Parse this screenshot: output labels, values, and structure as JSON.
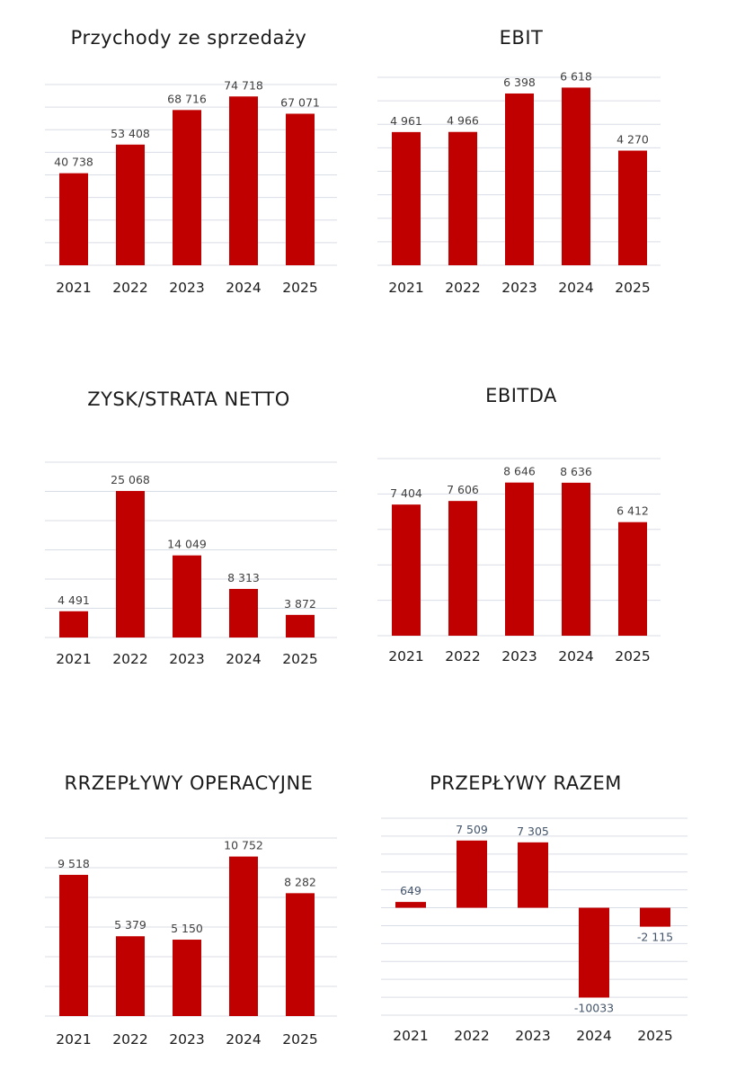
{
  "chart_data": [
    {
      "type": "bar",
      "title": "Przychody ze sprzedaży",
      "categories": [
        "2021",
        "2022",
        "2023",
        "2024",
        "2025"
      ],
      "values": [
        40738,
        53408,
        68716,
        74718,
        67071
      ],
      "value_labels": [
        "40 738",
        "53 408",
        "68 716",
        "74 718",
        "67 071"
      ],
      "ylim": [
        0,
        80000
      ],
      "grid": true,
      "bar_color": "#c00000"
    },
    {
      "type": "bar",
      "title": "EBIT",
      "categories": [
        "2021",
        "2022",
        "2023",
        "2024",
        "2025"
      ],
      "values": [
        4961,
        4966,
        6398,
        6618,
        4270
      ],
      "value_labels": [
        "4 961",
        "4 966",
        "6 398",
        "6 618",
        "4 270"
      ],
      "ylim": [
        0,
        7000
      ],
      "grid": true,
      "bar_color": "#c00000"
    },
    {
      "type": "bar",
      "title": "ZYSK/STRATA NETTO",
      "categories": [
        "2021",
        "2022",
        "2023",
        "2024",
        "2025"
      ],
      "values": [
        4491,
        25068,
        14049,
        8313,
        3872
      ],
      "value_labels": [
        "4 491",
        "25 068",
        "14 049",
        "8 313",
        "3 872"
      ],
      "ylim": [
        0,
        30000
      ],
      "grid": true,
      "bar_color": "#c00000"
    },
    {
      "type": "bar",
      "title": "EBITDA",
      "categories": [
        "2021",
        "2022",
        "2023",
        "2024",
        "2025"
      ],
      "values": [
        7404,
        7606,
        8646,
        8636,
        6412
      ],
      "value_labels": [
        "7 404",
        "7 606",
        "8 646",
        "8 636",
        "6 412"
      ],
      "ylim": [
        0,
        10000
      ],
      "grid": true,
      "bar_color": "#c00000"
    },
    {
      "type": "bar",
      "title": "RRZEPŁYWY OPERACYJNE",
      "categories": [
        "2021",
        "2022",
        "2023",
        "2024",
        "2025"
      ],
      "values": [
        9518,
        5379,
        5150,
        10752,
        8282
      ],
      "value_labels": [
        "9 518",
        "5 379",
        "5 150",
        "10 752",
        "8 282"
      ],
      "ylim": [
        0,
        12000
      ],
      "grid": true,
      "bar_color": "#c00000"
    },
    {
      "type": "bar",
      "title": "PRZEPŁYWY RAZEM",
      "categories": [
        "2021",
        "2022",
        "2023",
        "2024",
        "2025"
      ],
      "values": [
        649,
        7509,
        7305,
        -10033,
        -2115
      ],
      "value_labels": [
        "649",
        "7 509",
        "7 305",
        "-10033",
        "-2 115"
      ],
      "ylim": [
        -12000,
        10000
      ],
      "grid": true,
      "bar_color": "#c00000"
    }
  ]
}
